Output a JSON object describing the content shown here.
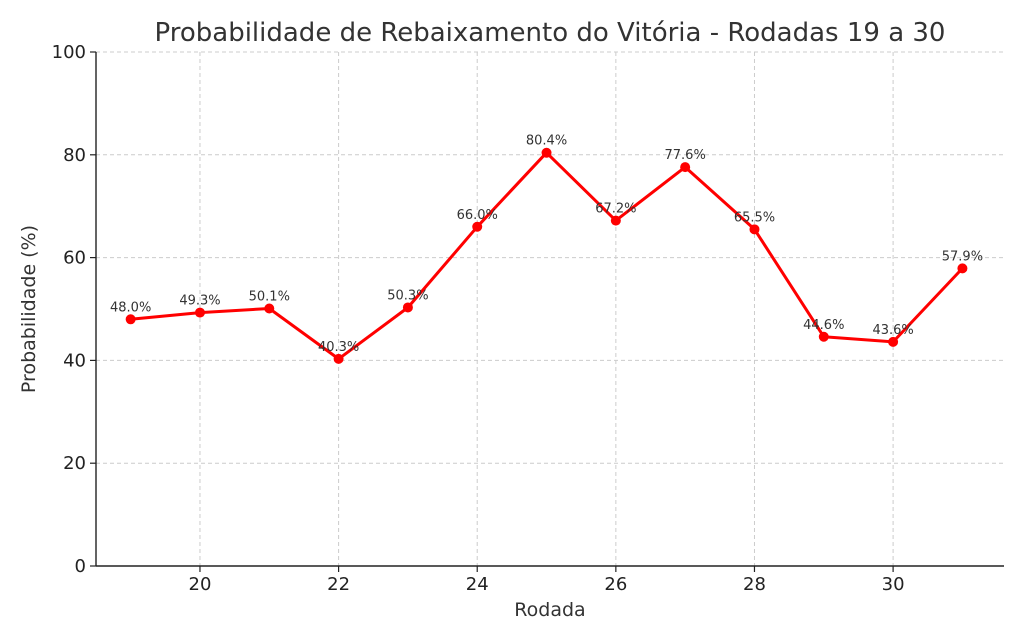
{
  "chart_data": {
    "type": "line",
    "title": "Probabilidade de Rebaixamento do Vitória - Rodadas 19 a 30",
    "xlabel": "Rodada",
    "ylabel": "Probabilidade (%)",
    "xlim": [
      18.5,
      31.6
    ],
    "ylim": [
      0,
      100
    ],
    "xticks": [
      20,
      22,
      24,
      26,
      28,
      30
    ],
    "yticks": [
      0,
      20,
      40,
      60,
      80,
      100
    ],
    "grid": true,
    "series_color": "#ff0000",
    "series": [
      {
        "x": [
          19,
          20,
          21,
          22,
          23,
          24,
          25,
          26,
          27,
          28,
          29,
          30,
          31
        ],
        "values": [
          48.0,
          49.3,
          50.1,
          40.3,
          50.3,
          66.0,
          80.4,
          67.2,
          77.6,
          65.5,
          44.6,
          43.6,
          57.9
        ],
        "labels": [
          "48.0%",
          "49.3%",
          "50.1%",
          "40.3%",
          "50.3%",
          "66.0%",
          "80.4%",
          "67.2%",
          "77.6%",
          "65.5%",
          "44.6%",
          "43.6%",
          "57.9%"
        ]
      }
    ]
  }
}
